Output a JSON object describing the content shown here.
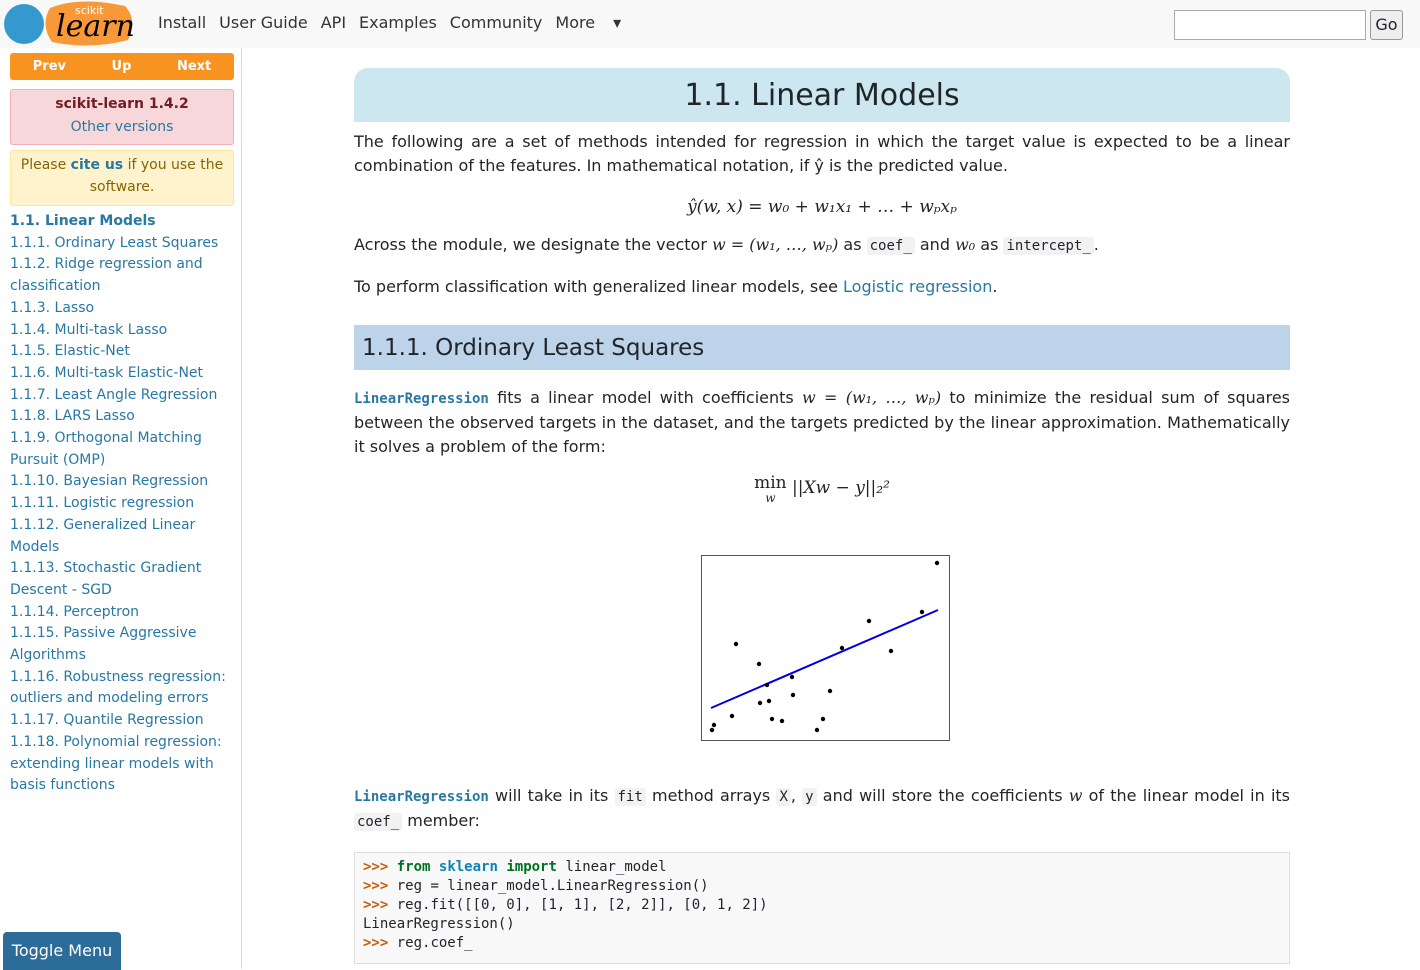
{
  "navbar": {
    "logo_small": "scikit",
    "logo": "learn",
    "links": [
      "Install",
      "User Guide",
      "API",
      "Examples",
      "Community",
      "More"
    ],
    "search_button": "Go"
  },
  "sidebar": {
    "nav_buttons": [
      "Prev",
      "Up",
      "Next"
    ],
    "version": "scikit-learn 1.4.2",
    "other_versions": "Other versions",
    "cite": {
      "before": "Please ",
      "link": "cite us",
      "after": " if you use the software."
    },
    "toc": [
      "1.1. Linear Models",
      "1.1.1. Ordinary Least Squares",
      "1.1.2. Ridge regression and classification",
      "1.1.3. Lasso",
      "1.1.4. Multi-task Lasso",
      "1.1.5. Elastic-Net",
      "1.1.6. Multi-task Elastic-Net",
      "1.1.7. Least Angle Regression",
      "1.1.8. LARS Lasso",
      "1.1.9. Orthogonal Matching Pursuit (OMP)",
      "1.1.10. Bayesian Regression",
      "1.1.11. Logistic regression",
      "1.1.12. Generalized Linear Models",
      "1.1.13. Stochastic Gradient Descent - SGD",
      "1.1.14. Perceptron",
      "1.1.15. Passive Aggressive Algorithms",
      "1.1.16. Robustness regression: outliers and modeling errors",
      "1.1.17. Quantile Regression",
      "1.1.18. Polynomial regression: extending linear models with basis functions"
    ],
    "toggle": "Toggle Menu"
  },
  "content": {
    "title": "1.1. Linear Models",
    "intro": "The following are a set of methods intended for regression in which the target value is expected to be a linear combination of the features. In mathematical notation, if ŷ is the predicted value.",
    "formula1": "ŷ(w, x) = w₀ + w₁x₁ + … + wₚxₚ",
    "module_par": [
      "Across the module, we designate the vector ",
      "w = (w₁, …, wₚ)",
      " as ",
      "coef_",
      " and ",
      "w₀",
      " as ",
      "intercept_",
      "."
    ],
    "classif_par": [
      "To perform classification with generalized linear models, see ",
      "Logistic regression",
      "."
    ],
    "section_title": "1.1.1. Ordinary Least Squares",
    "ols_par": [
      "LinearRegression",
      " fits a linear model with coefficients ",
      "w = (w₁, …, wₚ)",
      " to minimize the residual sum of squares between the observed targets in the dataset, and the targets predicted by the linear approximation. Mathematically it solves a problem of the form:"
    ],
    "formula2": {
      "op": "min",
      "under": "w",
      "body": "||Xw − y||₂²"
    },
    "fit_par": [
      "LinearRegression",
      " will take in its ",
      "fit",
      " method arrays ",
      "X",
      ", ",
      "y",
      " and will store the coefficients ",
      "w",
      " of the linear model in its ",
      "coef_",
      " member:"
    ],
    "code": [
      [
        ">>>",
        "from",
        "sklearn",
        "import",
        "linear_model"
      ],
      [
        ">>>",
        "reg = linear_model.LinearRegression()"
      ],
      [
        ">>>",
        "reg.fit([[0, 0], [1, 1], [2, 2]], [0, 1, 2])"
      ],
      [
        "LinearRegression()"
      ],
      [
        ">>>",
        "reg.coef_"
      ]
    ]
  }
}
